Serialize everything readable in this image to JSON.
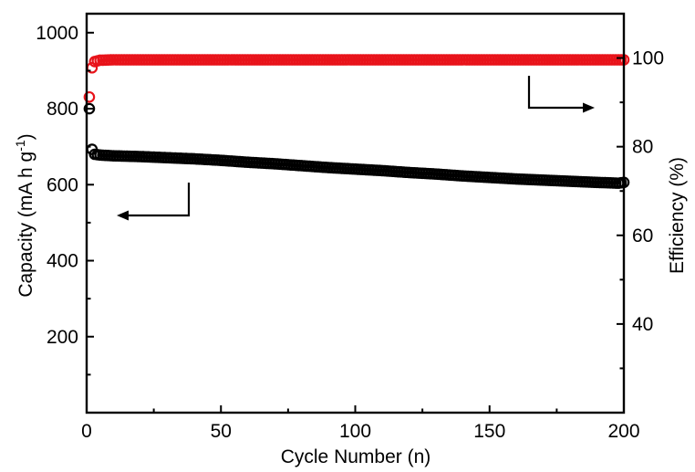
{
  "chart_data": {
    "type": "scatter",
    "xlabel": "Cycle Number (n)",
    "ylabel_left": "Capacity (mA h g",
    "ylabel_left_sup": "-1",
    "ylabel_left_close": ")",
    "ylabel_right": "Efficiency (%)",
    "xlim": [
      0,
      200
    ],
    "ylim_left": [
      0,
      1050
    ],
    "ylim_right": [
      20,
      110
    ],
    "x_ticks": [
      0,
      50,
      100,
      150,
      200
    ],
    "left_ticks": [
      200,
      400,
      600,
      800,
      1000
    ],
    "right_ticks": [
      40,
      60,
      80,
      100
    ],
    "grid": false,
    "series": [
      {
        "axis": "left",
        "color": "#000000",
        "points": [
          [
            1,
            800
          ],
          [
            2,
            693
          ],
          [
            3,
            680
          ],
          [
            5,
            678
          ],
          [
            10,
            676
          ],
          [
            20,
            674
          ],
          [
            30,
            671
          ],
          [
            40,
            668
          ],
          [
            50,
            664
          ],
          [
            60,
            659
          ],
          [
            70,
            655
          ],
          [
            80,
            650
          ],
          [
            90,
            645
          ],
          [
            100,
            641
          ],
          [
            110,
            637
          ],
          [
            120,
            632
          ],
          [
            130,
            628
          ],
          [
            140,
            623
          ],
          [
            150,
            619
          ],
          [
            160,
            615
          ],
          [
            170,
            612
          ],
          [
            180,
            609
          ],
          [
            190,
            606
          ],
          [
            198,
            604
          ],
          [
            200,
            606
          ]
        ]
      },
      {
        "axis": "right",
        "color": "#e8131a",
        "points": [
          [
            1,
            91.2
          ],
          [
            2,
            97.8
          ],
          [
            3,
            99.2
          ],
          [
            5,
            99.5
          ],
          [
            10,
            99.6
          ],
          [
            20,
            99.6
          ],
          [
            40,
            99.6
          ],
          [
            60,
            99.6
          ],
          [
            80,
            99.6
          ],
          [
            100,
            99.6
          ],
          [
            120,
            99.6
          ],
          [
            140,
            99.6
          ],
          [
            160,
            99.6
          ],
          [
            180,
            99.6
          ],
          [
            200,
            99.6
          ]
        ]
      }
    ]
  }
}
